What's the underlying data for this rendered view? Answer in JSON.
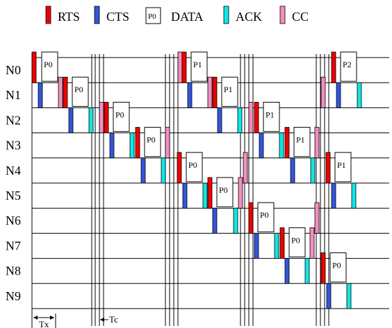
{
  "legend": [
    {
      "key": "rts",
      "label": "RTS",
      "color": "#ee0000",
      "swatch": "bar"
    },
    {
      "key": "cts",
      "label": "CTS",
      "color": "#3355dd",
      "swatch": "bar"
    },
    {
      "key": "data",
      "label": "DATA",
      "color": "#ffffff",
      "swatch": "box",
      "box_text": "P0"
    },
    {
      "key": "ack",
      "label": "ACK",
      "color": "#11e6e6",
      "swatch": "bar"
    },
    {
      "key": "cc",
      "label": "CC",
      "color": "#f48fc0",
      "swatch": "bar"
    }
  ],
  "nodes": [
    "N0",
    "N1",
    "N2",
    "N3",
    "N4",
    "N5",
    "N6",
    "N7",
    "N8",
    "N9"
  ],
  "intervals": {
    "tx": "Tx",
    "tc": "Tc"
  }
}
